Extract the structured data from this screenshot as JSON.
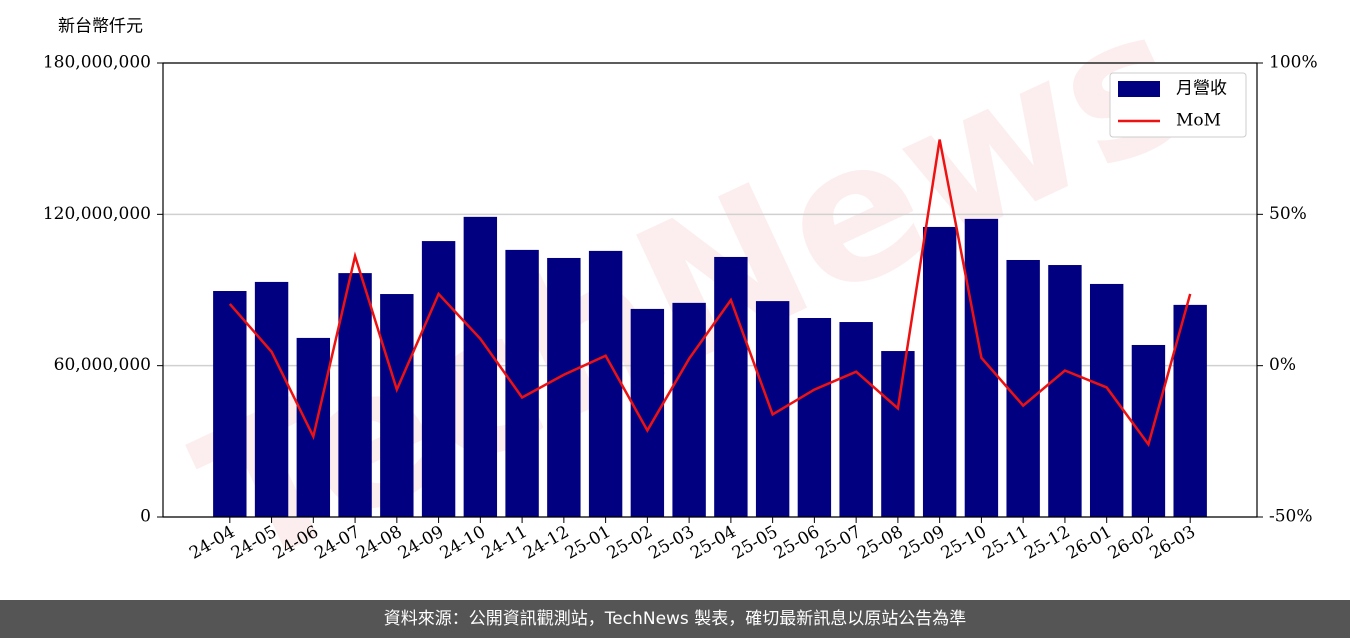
{
  "chart_data": {
    "type": "bar_line",
    "y_label": "新台幣仟元",
    "watermark": "TechNews",
    "categories": [
      "24-04",
      "24-05",
      "24-06",
      "24-07",
      "24-08",
      "24-09",
      "24-10",
      "24-11",
      "24-12",
      "25-01",
      "25-02",
      "25-03",
      "25-04",
      "25-05",
      "25-06",
      "25-07",
      "25-08",
      "25-09",
      "25-10",
      "25-11",
      "25-12",
      "26-01",
      "26-02",
      "26-03"
    ],
    "series": [
      {
        "name": "月營收",
        "color": "#000080",
        "type": "bar",
        "axis": "y",
        "values": [
          89600000,
          93200000,
          71000000,
          96700000,
          88400000,
          109400000,
          119000000,
          105900000,
          102700000,
          105500000,
          82500000,
          84900000,
          103100000,
          85600000,
          78900000,
          77300000,
          65800000,
          115000000,
          118200000,
          101900000,
          99900000,
          92400000,
          68200000,
          84100000
        ]
      },
      {
        "name": "MoM",
        "color": "#ee1111",
        "type": "line",
        "axis": "y2",
        "values": [
          20.4,
          4.6,
          -23.4,
          36.2,
          -7.9,
          23.7,
          8.9,
          -10.5,
          -3.0,
          3.3,
          -21.4,
          2.3,
          21.7,
          -16.1,
          -7.9,
          -2.0,
          -14.1,
          74.7,
          2.6,
          -13.2,
          -1.6,
          -7.2,
          -26.0,
          23.7
        ]
      }
    ],
    "ylim": [
      0,
      180000000
    ],
    "yticks": [
      {
        "value": 0,
        "label": "0"
      },
      {
        "value": 60000000,
        "label": "60,000,000"
      },
      {
        "value": 120000000,
        "label": "120,000,000"
      },
      {
        "value": 180000000,
        "label": "180,000,000"
      }
    ],
    "y2lim": [
      -50,
      100
    ],
    "y2ticks": [
      {
        "value": -50,
        "label": "-50%"
      },
      {
        "value": 0,
        "label": "0%"
      },
      {
        "value": 50,
        "label": "50%"
      },
      {
        "value": 100,
        "label": "100%"
      }
    ],
    "grid": true,
    "legend": "upper right"
  },
  "footer": "資料來源：公開資訊觀測站，TechNews 製表，確切最新訊息以原站公告為準"
}
